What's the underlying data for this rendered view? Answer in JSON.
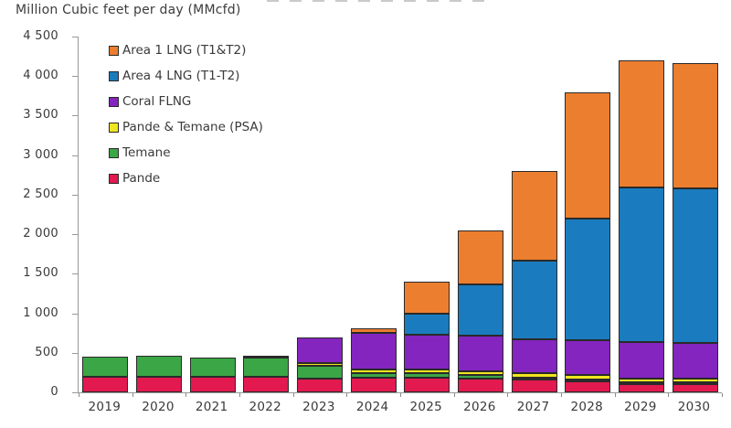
{
  "page": {
    "title": "Million Cubic feet per day (MMcfd)"
  },
  "chart_data": {
    "type": "bar",
    "stacked": true,
    "title": "Million Cubic feet per day (MMcfd)",
    "xlabel": "",
    "ylabel": "Million Cubic feet per day (MMcfd)",
    "categories": [
      "2019",
      "2020",
      "2021",
      "2022",
      "2023",
      "2024",
      "2025",
      "2026",
      "2027",
      "2028",
      "2029",
      "2030"
    ],
    "series": [
      {
        "name": "Pande",
        "color": "#E21A4F",
        "values": [
          200,
          200,
          195,
          195,
          170,
          190,
          190,
          175,
          165,
          140,
          105,
          100
        ]
      },
      {
        "name": "Temane",
        "color": "#3BA645",
        "values": [
          250,
          260,
          245,
          245,
          160,
          55,
          55,
          45,
          25,
          25,
          15,
          10
        ]
      },
      {
        "name": "Pande & Temane (PSA)",
        "color": "#F0E51E",
        "values": [
          0,
          0,
          0,
          15,
          40,
          50,
          50,
          50,
          50,
          60,
          50,
          55
        ]
      },
      {
        "name": "Coral FLNG",
        "color": "#8325BE",
        "values": [
          0,
          0,
          0,
          0,
          330,
          460,
          430,
          450,
          430,
          435,
          460,
          445
        ]
      },
      {
        "name": "Area 4 LNG (T1-T2)",
        "color": "#1A7CBE",
        "values": [
          0,
          0,
          0,
          0,
          0,
          0,
          270,
          650,
          1000,
          1540,
          1950,
          1960
        ]
      },
      {
        "name": "Area 1 LNG (T1&T2)",
        "color": "#EC7E2F",
        "values": [
          0,
          0,
          0,
          0,
          0,
          55,
          405,
          680,
          1130,
          1600,
          1610,
          1580
        ]
      }
    ],
    "totals": [
      450,
      460,
      440,
      455,
      700,
      810,
      1400,
      2050,
      2800,
      3800,
      4190,
      4150
    ],
    "ylim": [
      0,
      4500
    ],
    "ytick_values": [
      0,
      500,
      1000,
      1500,
      2000,
      2500,
      3000,
      3500,
      4000,
      4500
    ],
    "ytick_labels": [
      "0",
      "500",
      "1 000",
      "1 500",
      "2 000",
      "2 500",
      "3 000",
      "3 500",
      "4 000",
      "4 500"
    ],
    "grid": false,
    "legend": {
      "position": "top-left-inside",
      "entries": [
        "Area 1 LNG (T1&T2)",
        "Area 4 LNG (T1-T2)",
        "Coral FLNG",
        "Pande & Temane (PSA)",
        "Temane",
        "Pande"
      ]
    },
    "axis_color": "#999999",
    "text_color": "#3a3a3a",
    "bar_border_color": "#2a2a2a"
  }
}
